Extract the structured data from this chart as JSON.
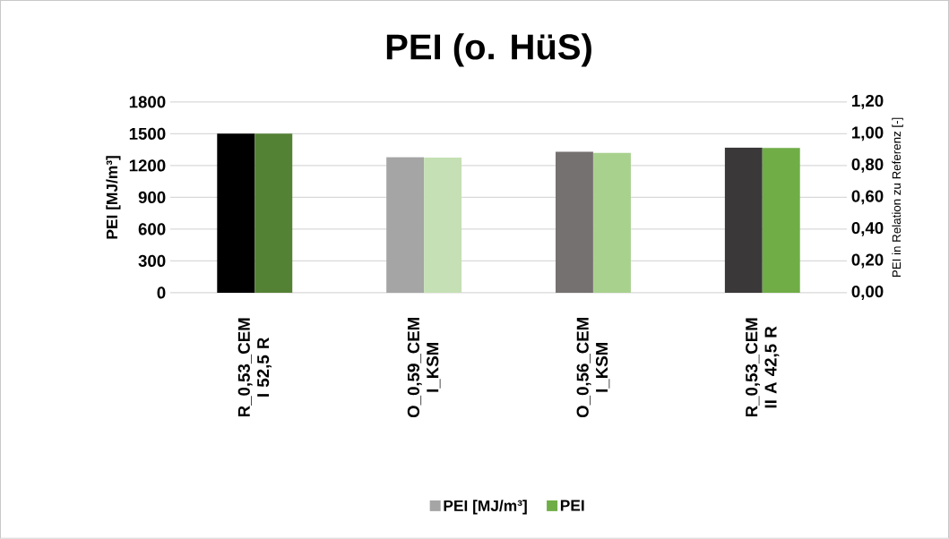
{
  "chart_data": {
    "type": "bar",
    "title": "PEI (o. HüS)",
    "ylabel": "PEI [MJ/m³]",
    "y2label": "PEI in Relation zu Referenz [-]",
    "categories": [
      "R_0,53_CEM I 52,5 R",
      "O_0,59_CEM I_KSM",
      "O_0,56_CEM I_KSM",
      "R_0,53_CEM II A 42,5 R"
    ],
    "series": [
      {
        "name": "PEI [MJ/m³]",
        "color": "#a5a5a5",
        "colors": [
          "#000000",
          "#a5a5a5",
          "#767171",
          "#3a3838"
        ],
        "values": [
          1500,
          1280,
          1330,
          1370
        ]
      },
      {
        "name": "PEI",
        "axis": "y2",
        "color": "#70ad47",
        "colors": [
          "#548235",
          "#c5e0b4",
          "#a9d18e",
          "#70ad47"
        ],
        "values": [
          1.0,
          0.85,
          0.88,
          0.91
        ]
      }
    ],
    "ylim": [
      0,
      1800
    ],
    "yticks": [
      0,
      300,
      600,
      900,
      1200,
      1500,
      1800
    ],
    "y2lim": [
      0,
      1.2
    ],
    "y2ticks": [
      {
        "value": 0,
        "label": "0,00"
      },
      {
        "value": 0.2,
        "label": "0,20"
      },
      {
        "value": 0.4,
        "label": "0,40"
      },
      {
        "value": 0.6,
        "label": "0,60"
      },
      {
        "value": 0.8,
        "label": "0,80"
      },
      {
        "value": 1.0,
        "label": "1,00"
      },
      {
        "value": 1.2,
        "label": "1,20"
      }
    ],
    "grid": "y",
    "legend": "bottom"
  }
}
